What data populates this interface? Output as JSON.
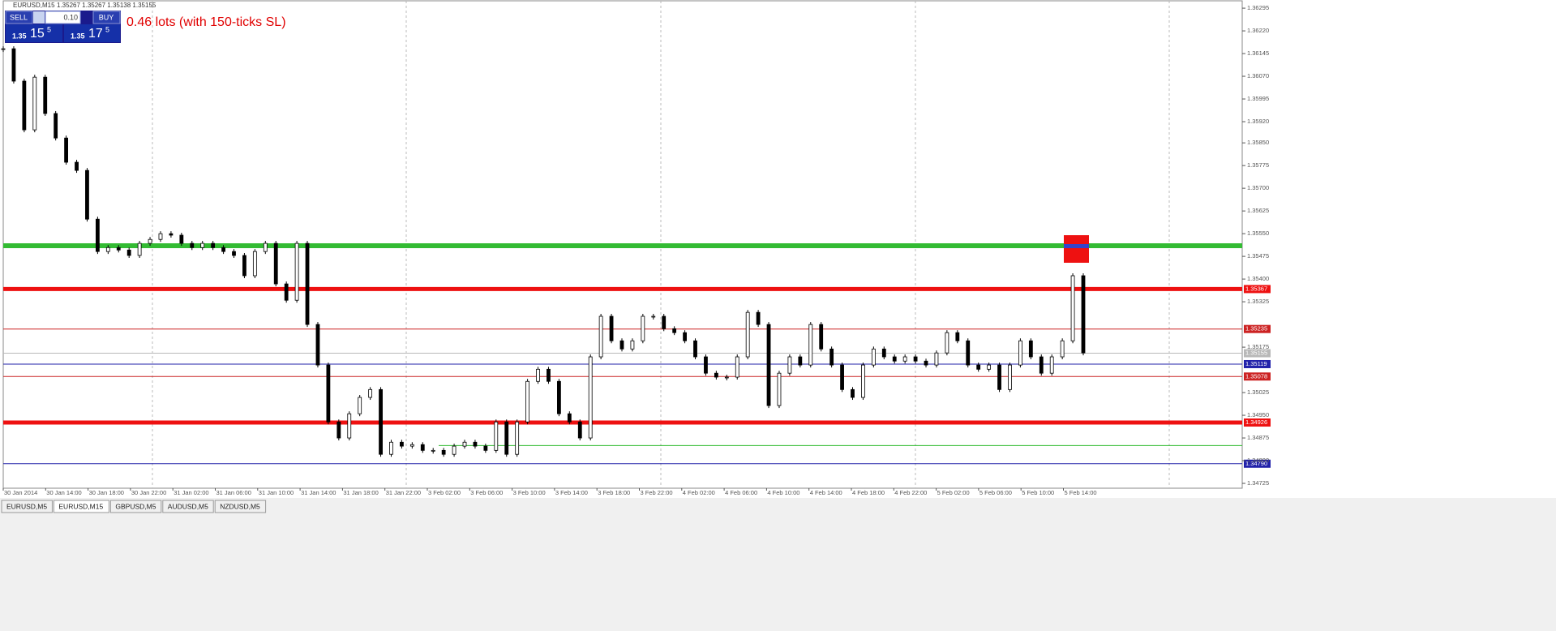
{
  "header": {
    "symbol": "EURUSD,M15",
    "quotes": "1.35267 1.35267 1.35138 1.35155"
  },
  "trade_panel": {
    "sell": "SELL",
    "buy": "BUY",
    "volume": "0.10",
    "bid_big": "1.35",
    "bid_main": "15",
    "bid_small": "5",
    "ask_big": "1.35",
    "ask_main": "17",
    "ask_small": "5"
  },
  "annotation": "0.46 lots (with 150-ticks SL)",
  "chart_data": {
    "type": "price-bars",
    "categories": [
      "30 Jan 2014",
      "30 Jan 14:00",
      "30 Jan 18:00",
      "30 Jan 22:00",
      "31 Jan 02:00",
      "31 Jan 06:00",
      "31 Jan 10:00",
      "31 Jan 14:00",
      "31 Jan 18:00",
      "31 Jan 22:00",
      "3 Feb 02:00",
      "3 Feb 06:00",
      "3 Feb 10:00",
      "3 Feb 14:00",
      "3 Feb 18:00",
      "3 Feb 22:00",
      "4 Feb 02:00",
      "4 Feb 06:00",
      "4 Feb 10:00",
      "4 Feb 14:00",
      "4 Feb 18:00",
      "4 Feb 22:00",
      "5 Feb 02:00",
      "5 Feb 06:00",
      "5 Feb 10:00",
      "5 Feb 14:00"
    ],
    "prices": [
      1.36161,
      1.36054,
      1.35893,
      1.36067,
      1.35947,
      1.35866,
      1.35786,
      1.35759,
      1.35598,
      1.35491,
      1.35504,
      1.35496,
      1.35478,
      1.35518,
      1.35531,
      1.3555,
      1.35545,
      1.35518,
      1.35504,
      1.35518,
      1.35504,
      1.35491,
      1.35478,
      1.35411,
      1.35491,
      1.35518,
      1.35384,
      1.3533,
      1.35518,
      1.3525,
      1.35116,
      1.34928,
      1.34875,
      1.34955,
      1.35009,
      1.35035,
      1.34821,
      1.34861,
      1.34848,
      1.34853,
      1.34834,
      1.34834,
      1.34821,
      1.34848,
      1.34861,
      1.34848,
      1.34834,
      1.34928,
      1.34821,
      1.34928,
      1.35062,
      1.35102,
      1.35062,
      1.34955,
      1.34928,
      1.34875,
      1.35143,
      1.35277,
      1.35196,
      1.35169,
      1.35196,
      1.35277,
      1.35277,
      1.35236,
      1.35223,
      1.35196,
      1.35143,
      1.35089,
      1.35076,
      1.35076,
      1.35143,
      1.3529,
      1.3525,
      1.34982,
      1.35089,
      1.35143,
      1.35116,
      1.3525,
      1.35169,
      1.35116,
      1.35035,
      1.35009,
      1.35116,
      1.35169,
      1.35143,
      1.35129,
      1.35143,
      1.35129,
      1.35116,
      1.35156,
      1.35223,
      1.35196,
      1.35116,
      1.35102,
      1.35116,
      1.35035,
      1.35116,
      1.35196,
      1.35143,
      1.35089,
      1.35143,
      1.35196,
      1.35411,
      1.35156
    ],
    "ylim": [
      1.34709,
      1.36322
    ],
    "yticks": [
      1.36295,
      {
        "value": 1.3622,
        "label": "1.36220"
      },
      1.36145,
      {
        "value": 1.3607,
        "label": "1.36070"
      },
      1.35995,
      {
        "value": 1.3592,
        "label": "1.35920"
      },
      {
        "value": 1.3585,
        "label": "1.35850"
      },
      1.35775,
      {
        "value": 1.357,
        "label": "1.35700"
      },
      1.35625,
      {
        "value": 1.3555,
        "label": "1.35550"
      },
      1.35475,
      {
        "value": 1.354,
        "label": "1.35400"
      },
      1.35325,
      1.35175,
      1.35025,
      {
        "value": 1.3495,
        "label": "1.34950"
      },
      1.34875,
      {
        "value": 1.348,
        "label": "1.34800"
      },
      1.34725
    ],
    "levels": [
      {
        "value": 1.3551,
        "color": "#33bb33",
        "width": 6
      },
      {
        "value": 1.35367,
        "label": "1.35367",
        "color": "#ee1111",
        "width": 5
      },
      {
        "value": 1.35235,
        "label": "1.35235",
        "color": "#cc2222",
        "width": 1
      },
      {
        "value": 1.35155,
        "label": "1.35155",
        "color": "#b8b8b8",
        "width": 1
      },
      {
        "value": 1.35119,
        "label": "1.35119",
        "color": "#2222aa",
        "width": 1
      },
      {
        "value": 1.35078,
        "label": "1.35078",
        "color": "#cc2222",
        "width": 1
      },
      {
        "value": 1.34926,
        "label": "1.34926",
        "color": "#ee1111",
        "width": 5
      },
      {
        "value": 1.3485,
        "color": "#33bb33",
        "width": 1,
        "from": "3 Feb 02:00"
      },
      {
        "value": 1.3479,
        "label": "1.34790",
        "color": "#2222aa",
        "width": 1
      }
    ]
  },
  "tabs": [
    "EURUSD,M5",
    "EURUSD,M15",
    "GBPUSD,M5",
    "AUDUSD,M5",
    "NZDUSD,M5"
  ],
  "active_tab": "EURUSD,M15"
}
